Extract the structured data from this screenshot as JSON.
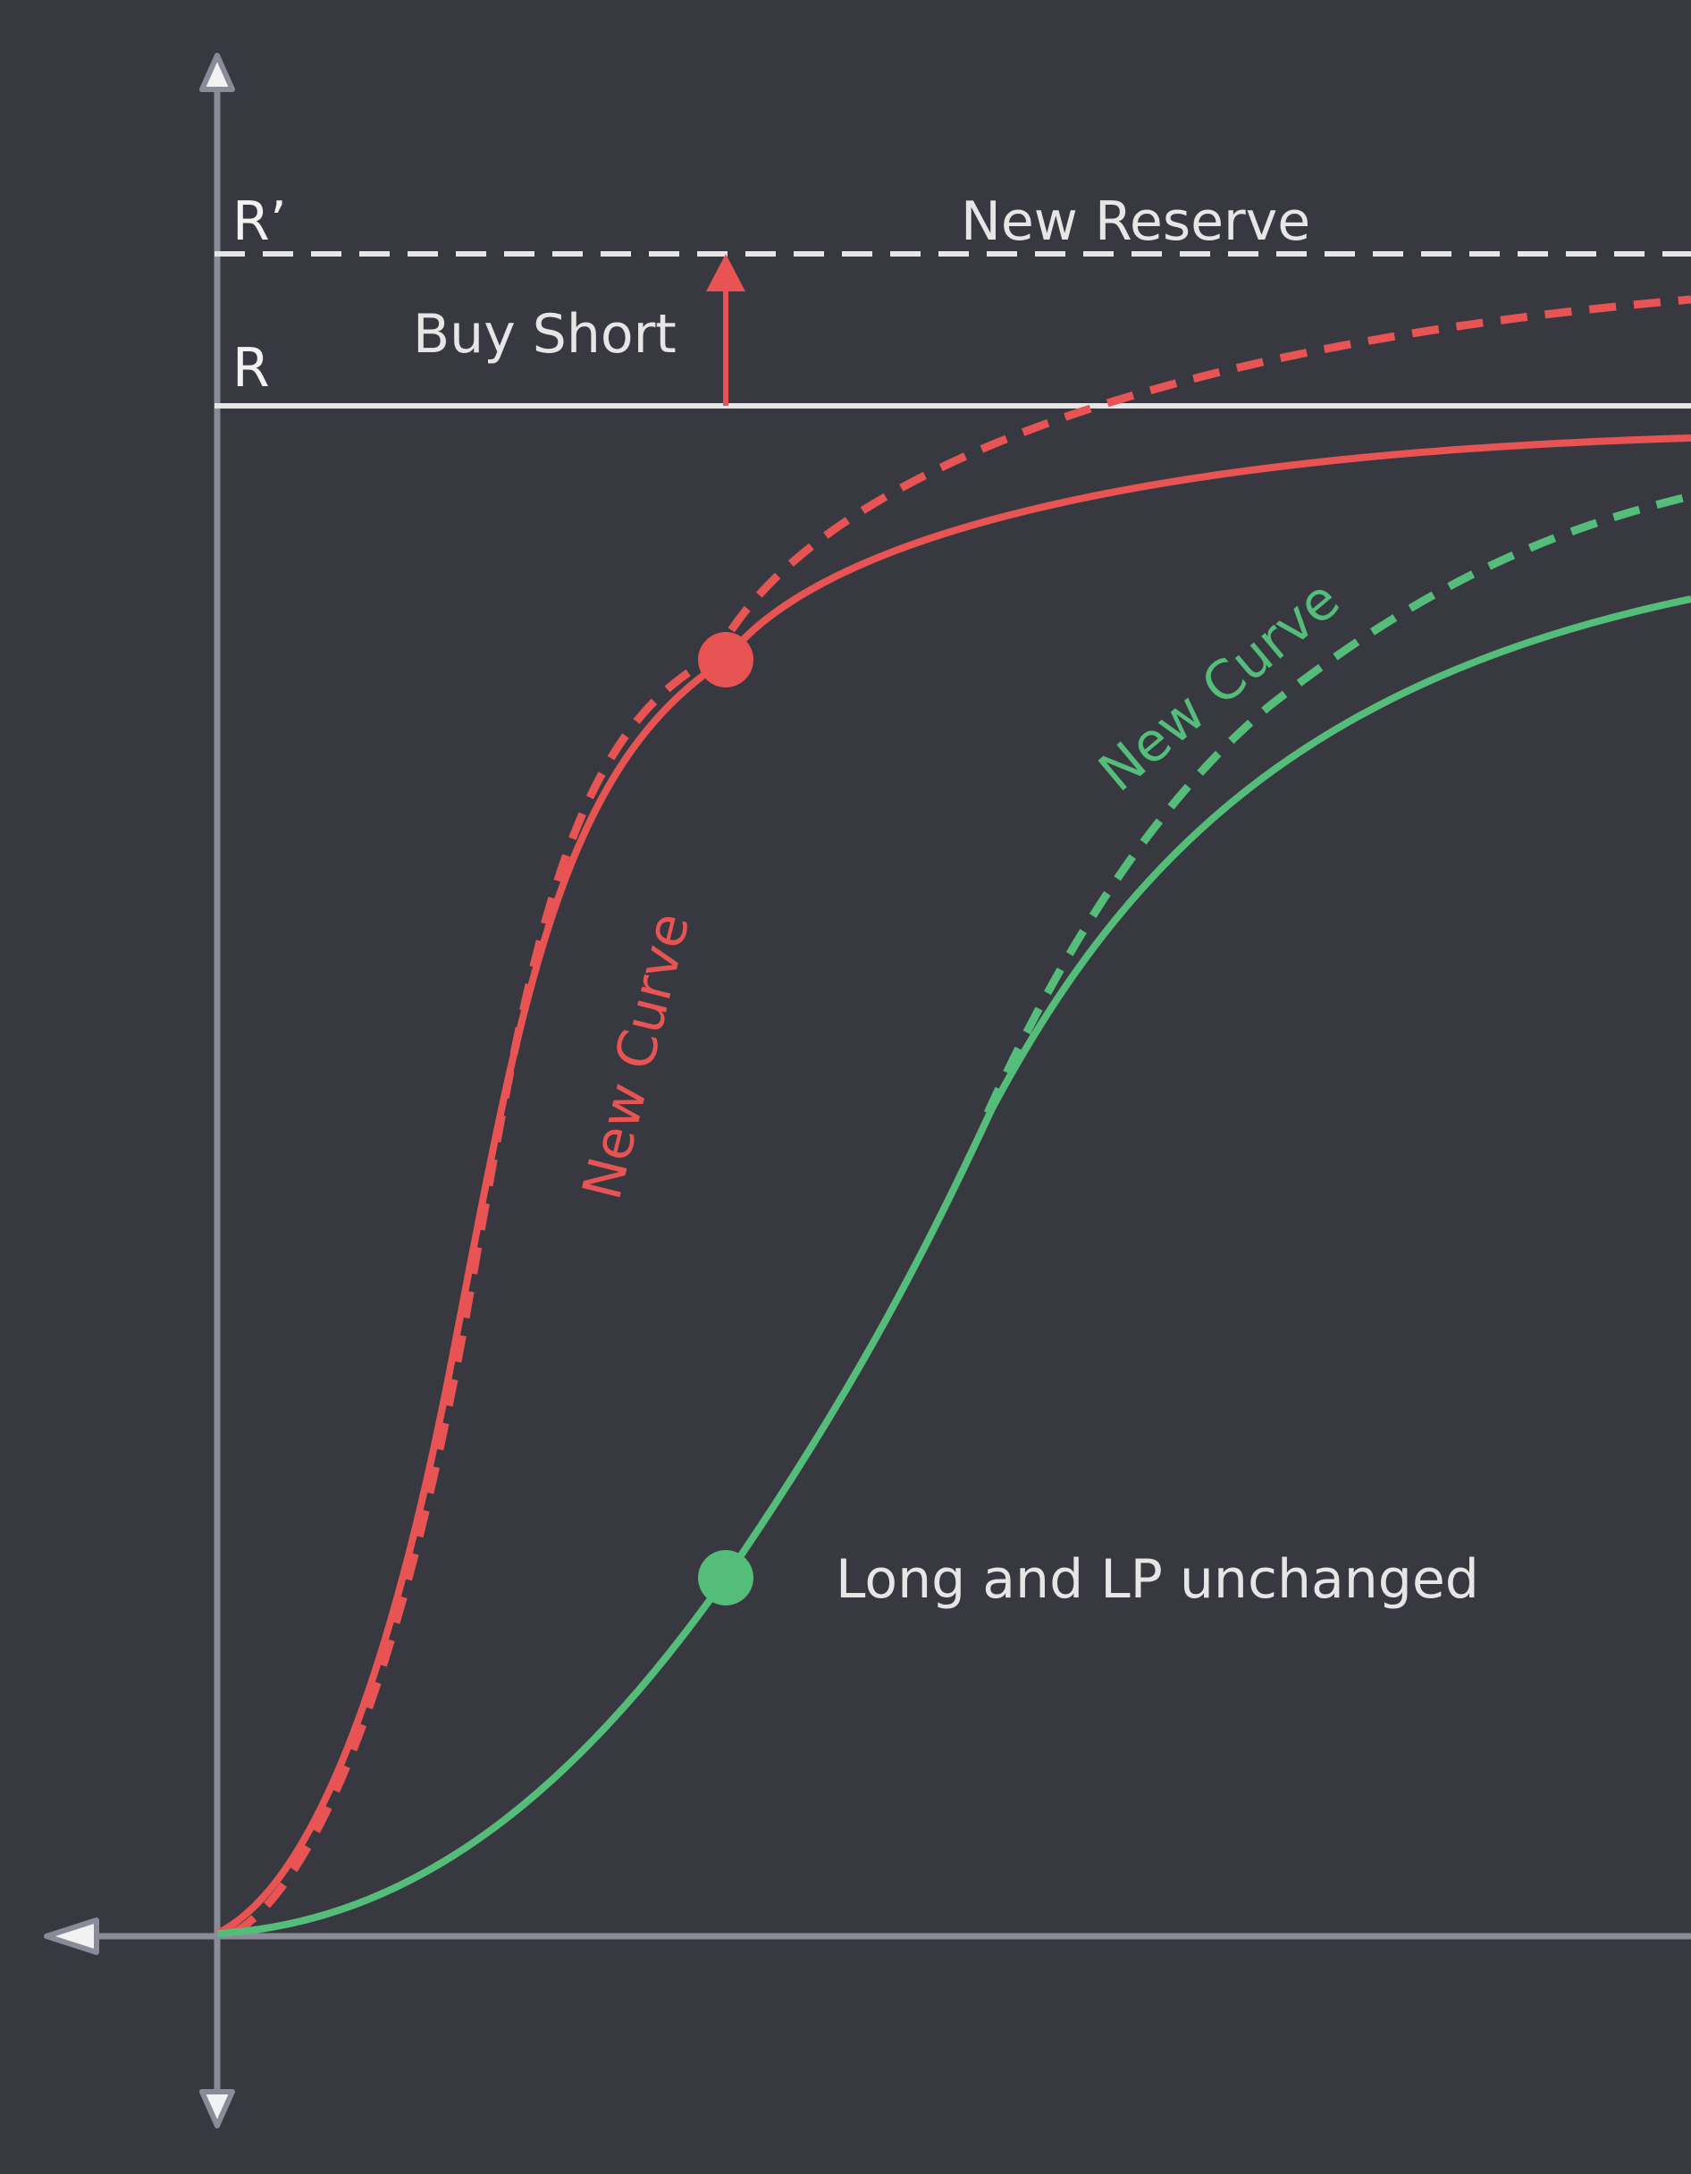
{
  "labels": {
    "r_prime": "R’",
    "r": "R",
    "new_reserve": "New Reserve",
    "buy_short": "Buy Short",
    "red_new_curve": "New Curve",
    "green_new_curve": "New Curve",
    "long_lp": "Long and LP unchanged"
  },
  "colors": {
    "background": "#383940",
    "axis": "#8a8b99",
    "reserve": "#e6e6e6",
    "short_curve": "#e85454",
    "long_curve": "#55bd7a",
    "text": "#e6e6e6"
  }
}
